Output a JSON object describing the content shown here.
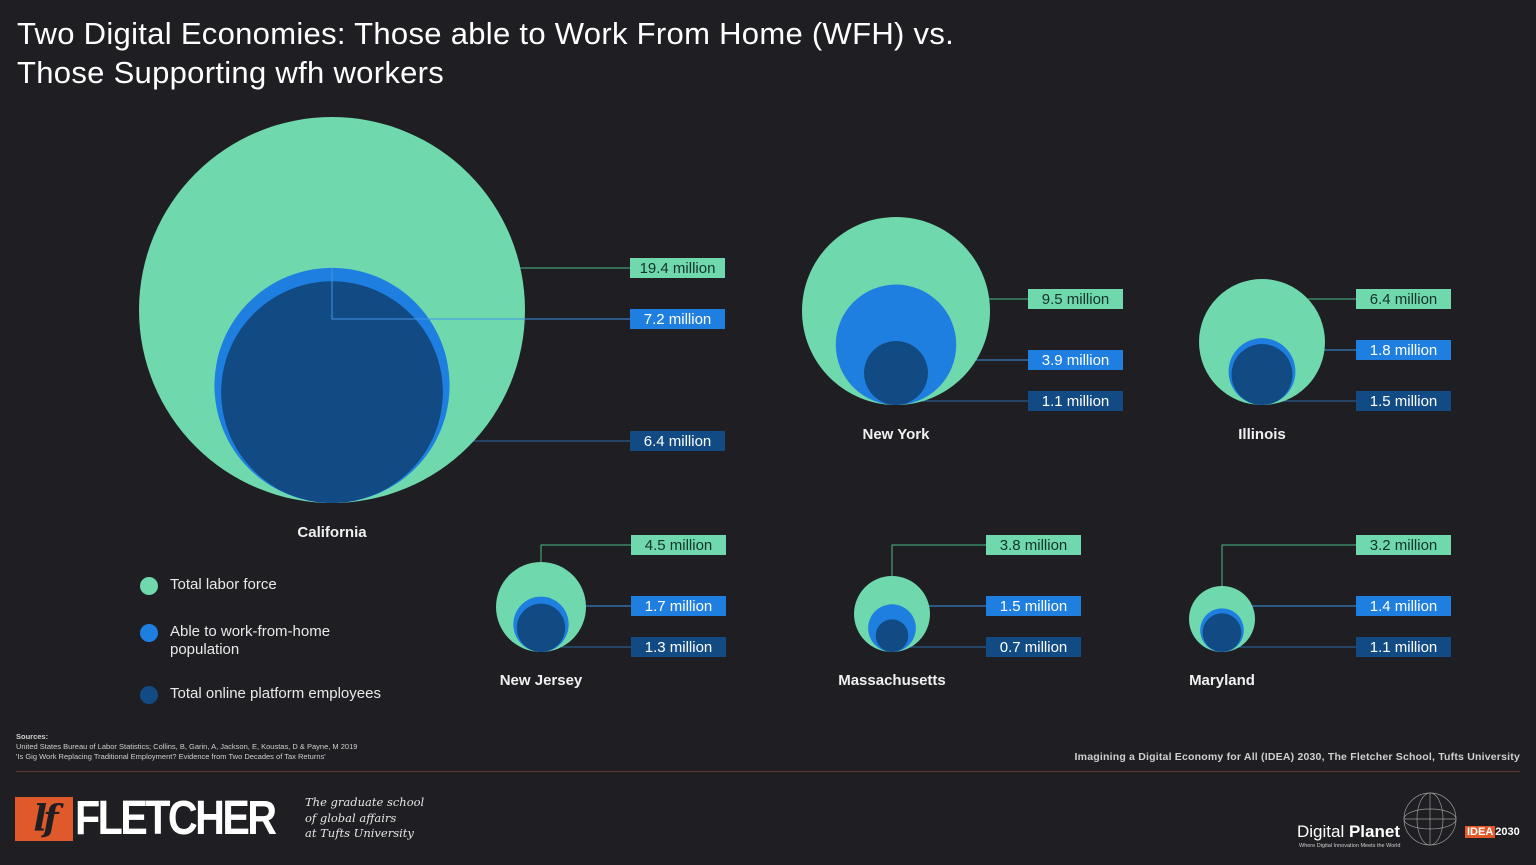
{
  "title": {
    "line1": "Two Digital Economies: Those able to Work From Home (WFH) vs.",
    "line2": "Those Supporting wfh workers"
  },
  "colors": {
    "background": "#1f1f23",
    "total_labor_force": "#6fd8ad",
    "wfh_population": "#1e7fe0",
    "platform_employees": "#124b84",
    "accent_orange": "#e0592a"
  },
  "chart_data": {
    "type": "bubble",
    "series": [
      {
        "name": "Total labor force",
        "color": "#6fd8ad"
      },
      {
        "name": "Able to work-from-home population",
        "color": "#1e7fe0"
      },
      {
        "name": "Total online platform employees",
        "color": "#124b84"
      }
    ],
    "units": "million",
    "states": [
      {
        "name": "California",
        "values": [
          19.4,
          7.2,
          6.4
        ],
        "labels": [
          "19.4 million",
          "7.2 million",
          "6.4 million"
        ]
      },
      {
        "name": "New York",
        "values": [
          9.5,
          3.9,
          1.1
        ],
        "labels": [
          "9.5 million",
          "3.9 million",
          "1.1 million"
        ]
      },
      {
        "name": "Illinois",
        "values": [
          6.4,
          1.8,
          1.5
        ],
        "labels": [
          "6.4 million",
          "1.8 million",
          "1.5 million"
        ]
      },
      {
        "name": "New Jersey",
        "values": [
          4.5,
          1.7,
          1.3
        ],
        "labels": [
          "4.5 million",
          "1.7 million",
          "1.3 million"
        ]
      },
      {
        "name": "Massachusetts",
        "values": [
          3.8,
          1.5,
          0.7
        ],
        "labels": [
          "3.8 million",
          "1.5 million",
          "0.7 million"
        ]
      },
      {
        "name": "Maryland",
        "values": [
          3.2,
          1.4,
          1.1
        ],
        "labels": [
          "3.2 million",
          "1.4 million",
          "1.1 million"
        ]
      }
    ],
    "legend": [
      {
        "label": "Total labor force"
      },
      {
        "label": "Able to work-from-home population"
      },
      {
        "label": "Total online platform employees"
      }
    ],
    "legend_position": "bottom-left"
  },
  "sources": {
    "heading": "Sources:",
    "line1": "United States Bureau of Labor Statistics; Collins, B, Garin, A, Jackson, E, Koustas, D & Payne, M 2019",
    "line2": "'Is Gig Work Replacing Traditional Employment? Evidence from Two Decades of Tax Returns'"
  },
  "credit": "Imagining a Digital Economy for All (IDEA) 2030, The Fletcher School, Tufts University",
  "footer": {
    "fletcher_mark": "lf",
    "fletcher_word": "FLETCHER",
    "tagline": [
      "The graduate school",
      "of global affairs",
      "at Tufts University"
    ],
    "digital_planet_light": "Digital ",
    "digital_planet_bold": "Planet",
    "digital_planet_sub": "Where Digital Innovation Meets the World",
    "idea_box": "IDEA",
    "idea_year": "2030"
  }
}
